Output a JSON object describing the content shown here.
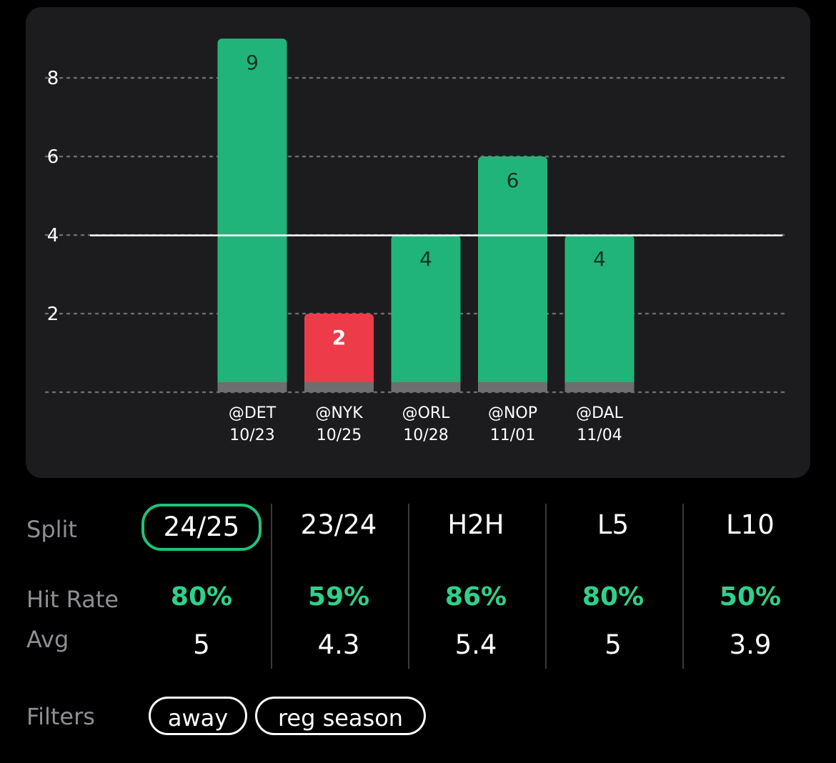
{
  "chart_data": {
    "type": "bar",
    "categories": [
      "@DET 10/23",
      "@NYK 10/25",
      "@ORL 10/28",
      "@NOP 11/01",
      "@DAL 11/04"
    ],
    "opponents": [
      "@DET",
      "@NYK",
      "@ORL",
      "@NOP",
      "@DAL"
    ],
    "dates": [
      "10/23",
      "10/25",
      "10/28",
      "11/01",
      "11/04"
    ],
    "values": [
      9,
      2,
      4,
      6,
      4
    ],
    "outcomes": [
      "hit",
      "miss",
      "hit",
      "hit",
      "hit"
    ],
    "line": 4,
    "yticks": [
      2,
      4,
      6,
      8
    ],
    "ylim": [
      0,
      10
    ],
    "grid": "dotted horizontal",
    "colors": {
      "hit": "#21b47a",
      "miss": "#ee3b4a",
      "line": "#ffffff",
      "grid": "#6b6b6b",
      "base": "#6e6e6e"
    }
  },
  "stats": {
    "split_label": "Split",
    "hit_rate_label": "Hit Rate",
    "avg_label": "Avg",
    "columns": [
      {
        "label": "24/25",
        "hit_rate": "80%",
        "avg": "5",
        "active": true
      },
      {
        "label": "23/24",
        "hit_rate": "59%",
        "avg": "4.3",
        "active": false
      },
      {
        "label": "H2H",
        "hit_rate": "86%",
        "avg": "5.4",
        "active": false
      },
      {
        "label": "L5",
        "hit_rate": "80%",
        "avg": "5",
        "active": false
      },
      {
        "label": "L10",
        "hit_rate": "50%",
        "avg": "3.9",
        "active": false
      }
    ]
  },
  "filters": {
    "label": "Filters",
    "chips": [
      "away",
      "reg season"
    ]
  },
  "accent_color": "#2ed18b"
}
